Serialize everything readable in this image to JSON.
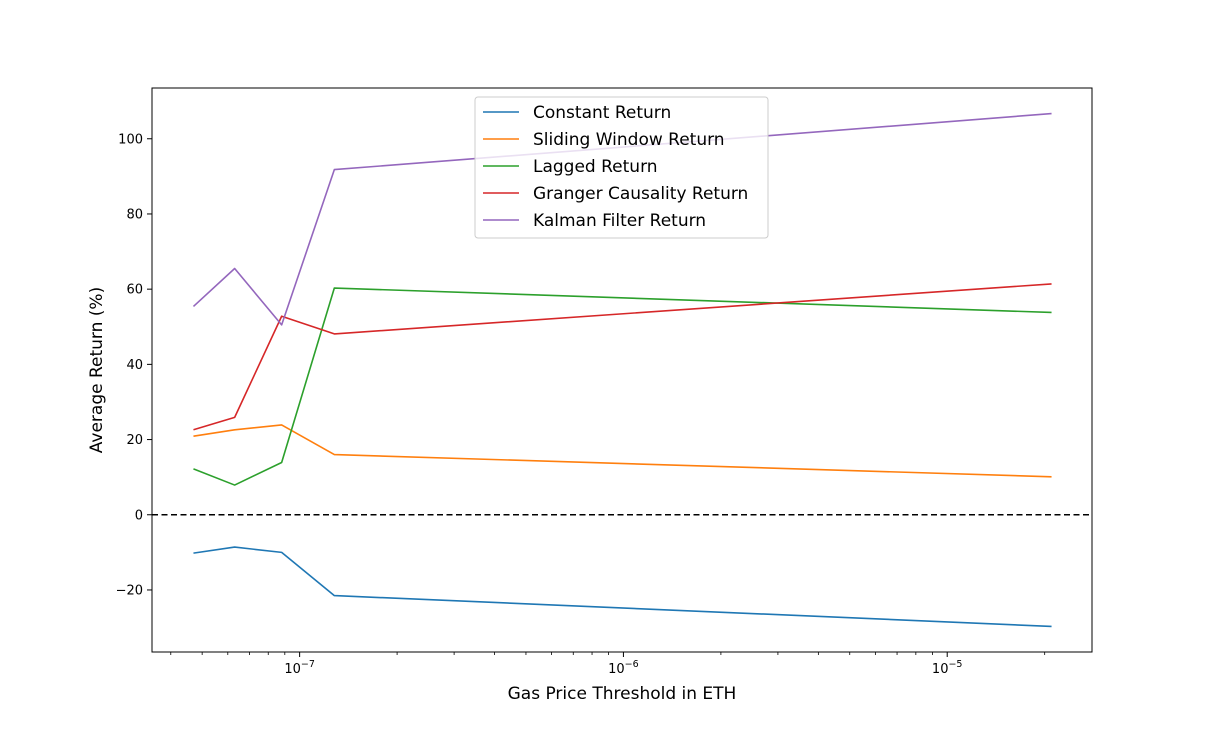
{
  "chart_data": {
    "type": "line",
    "title": "",
    "xlabel": "Gas Price Threshold in ETH",
    "ylabel": "Average Return (%)",
    "xscale": "log",
    "xlim": [
      3.5e-08,
      2.8e-05
    ],
    "ylim": [
      -36.5,
      113.5
    ],
    "yticks": [
      -20,
      0,
      20,
      40,
      60,
      80,
      100
    ],
    "xticks": [
      {
        "value": 1e-07,
        "base": "10",
        "exp": "−7"
      },
      {
        "value": 1e-06,
        "base": "10",
        "exp": "−6"
      },
      {
        "value": 1e-05,
        "base": "10",
        "exp": "−5"
      }
    ],
    "x": [
      4.7e-08,
      6.3e-08,
      8.8e-08,
      1.28e-07,
      2.1e-05
    ],
    "reference_line": {
      "y": 0,
      "style": "dashed",
      "color": "#000000"
    },
    "legend_position": "upper center",
    "series": [
      {
        "name": "Constant Return",
        "color": "#1f77b4",
        "values": [
          -10.2,
          -8.6,
          -10.0,
          -21.5,
          -29.7
        ]
      },
      {
        "name": "Sliding Window Return",
        "color": "#ff7f0e",
        "values": [
          20.9,
          22.6,
          23.9,
          16.0,
          10.1
        ]
      },
      {
        "name": "Lagged Return",
        "color": "#2ca02c",
        "values": [
          12.2,
          7.9,
          13.9,
          60.3,
          53.8
        ]
      },
      {
        "name": "Granger Causality Return",
        "color": "#d62728",
        "values": [
          22.6,
          25.9,
          52.8,
          48.1,
          61.4
        ]
      },
      {
        "name": "Kalman Filter Return",
        "color": "#9467bd",
        "values": [
          55.4,
          65.5,
          50.5,
          91.8,
          106.7
        ]
      }
    ]
  }
}
